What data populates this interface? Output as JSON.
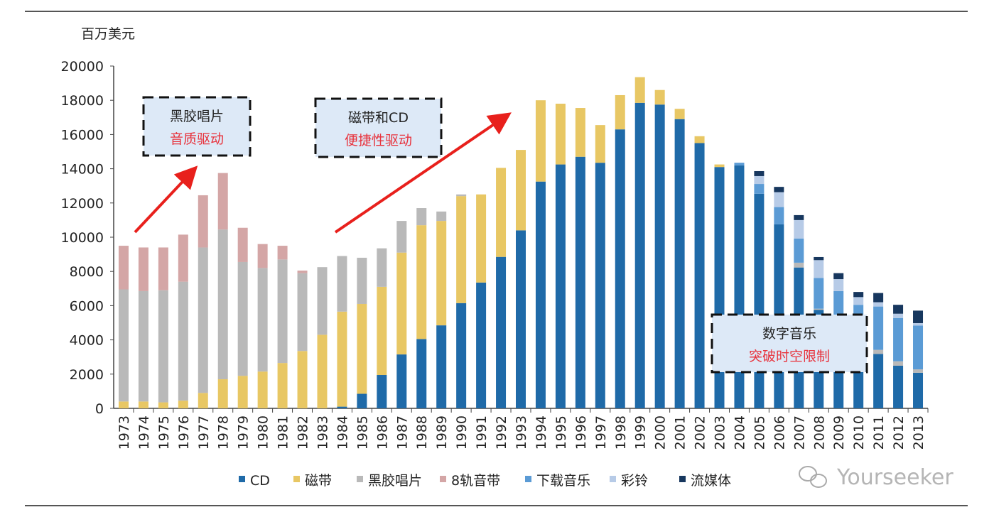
{
  "chart_data": {
    "type": "bar",
    "stacked": true,
    "ylabel": "百万美元",
    "ylim": [
      0,
      20000
    ],
    "yticks": [
      0,
      2000,
      4000,
      6000,
      8000,
      10000,
      12000,
      14000,
      16000,
      18000,
      20000
    ],
    "grid": false,
    "legend_position": "bottom",
    "categories": [
      "1973",
      "1974",
      "1975",
      "1976",
      "1977",
      "1978",
      "1979",
      "1980",
      "1981",
      "1982",
      "1983",
      "1984",
      "1985",
      "1986",
      "1987",
      "1988",
      "1989",
      "1990",
      "1991",
      "1992",
      "1993",
      "1994",
      "1995",
      "1996",
      "1997",
      "1998",
      "1999",
      "2000",
      "2001",
      "2002",
      "2003",
      "2004",
      "2005",
      "2006",
      "2007",
      "2008",
      "2009",
      "2010",
      "2011",
      "2012",
      "2013"
    ],
    "series": [
      {
        "name": "CD",
        "color": "#1f6aa8",
        "values": [
          0,
          0,
          0,
          0,
          0,
          0,
          0,
          0,
          0,
          0,
          0,
          100,
          850,
          1950,
          3150,
          4050,
          4850,
          6150,
          7350,
          8850,
          10400,
          13250,
          14250,
          14700,
          14350,
          16300,
          17850,
          17750,
          16900,
          15500,
          14100,
          14200,
          12540,
          10750,
          8230,
          5760,
          4500,
          3400,
          3180,
          2490,
          2080
        ]
      },
      {
        "name": "磁带",
        "color": "#e8c764",
        "values": [
          400,
          400,
          350,
          450,
          900,
          1700,
          1900,
          2150,
          2650,
          3350,
          4300,
          5550,
          5250,
          5150,
          5950,
          6650,
          6100,
          6250,
          5150,
          5200,
          4700,
          4750,
          3550,
          2850,
          2200,
          2000,
          1500,
          850,
          600,
          400,
          150,
          0,
          0,
          0,
          0,
          0,
          0,
          0,
          0,
          0,
          0
        ]
      },
      {
        "name": "黑胶唱片",
        "color": "#b9b9b9",
        "values": [
          6550,
          6450,
          6550,
          6950,
          8500,
          8750,
          6650,
          6050,
          6050,
          4550,
          3950,
          3250,
          2700,
          2250,
          1850,
          1000,
          550,
          100,
          0,
          0,
          0,
          0,
          0,
          0,
          0,
          0,
          0,
          0,
          0,
          0,
          0,
          0,
          0,
          0,
          280,
          60,
          200,
          200,
          240,
          260,
          200
        ]
      },
      {
        "name": "8轨音带",
        "color": "#d4a6a6",
        "values": [
          2550,
          2550,
          2500,
          2750,
          3050,
          3300,
          2000,
          1400,
          800,
          150,
          0,
          0,
          0,
          0,
          0,
          0,
          0,
          0,
          0,
          0,
          0,
          0,
          0,
          0,
          0,
          0,
          0,
          0,
          0,
          0,
          0,
          0,
          0,
          0,
          0,
          0,
          0,
          0,
          0,
          0,
          0
        ]
      },
      {
        "name": "下载音乐",
        "color": "#5b9bd5",
        "values": [
          0,
          0,
          0,
          0,
          0,
          0,
          0,
          0,
          0,
          0,
          0,
          0,
          0,
          0,
          0,
          0,
          0,
          0,
          0,
          0,
          0,
          0,
          0,
          0,
          0,
          0,
          0,
          0,
          0,
          0,
          0,
          150,
          570,
          1010,
          1410,
          1800,
          2150,
          2450,
          2530,
          2530,
          2560
        ]
      },
      {
        "name": "彩铃",
        "color": "#b7cbe7",
        "values": [
          0,
          0,
          0,
          0,
          0,
          0,
          0,
          0,
          0,
          0,
          0,
          0,
          0,
          0,
          0,
          0,
          0,
          0,
          0,
          0,
          0,
          0,
          0,
          0,
          0,
          0,
          0,
          0,
          0,
          0,
          0,
          0,
          460,
          870,
          1080,
          1040,
          700,
          450,
          250,
          250,
          140
        ]
      },
      {
        "name": "流媒体",
        "color": "#17375e",
        "values": [
          0,
          0,
          0,
          0,
          0,
          0,
          0,
          0,
          0,
          0,
          0,
          0,
          0,
          0,
          0,
          0,
          0,
          0,
          0,
          0,
          0,
          0,
          0,
          0,
          0,
          0,
          0,
          0,
          0,
          0,
          0,
          0,
          290,
          310,
          290,
          180,
          350,
          300,
          540,
          520,
          730
        ]
      }
    ],
    "annotations": [
      {
        "line1": "黑胶唱片",
        "line2": "音质驱动"
      },
      {
        "line1": "磁带和CD",
        "line2": "便捷性驱动"
      },
      {
        "line1": "数字音乐",
        "line2": "突破时空限制"
      }
    ],
    "annotation_colors": {
      "line1": "#222222",
      "line2": "#e8323c",
      "box_fill": "#dde9f7",
      "arrow": "#e8201c"
    }
  },
  "watermark": "Yourseeker"
}
